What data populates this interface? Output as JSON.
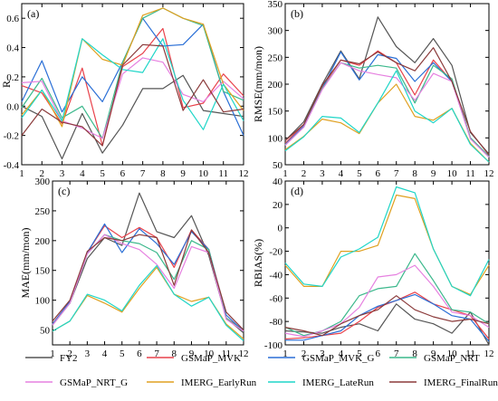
{
  "chart_data": [
    {
      "panel": "(a)",
      "type": "line",
      "ylabel": "R",
      "x": [
        1,
        2,
        3,
        4,
        5,
        6,
        7,
        8,
        9,
        10,
        11,
        12
      ],
      "ylim": [
        -0.4,
        0.7
      ],
      "yticks": [
        -0.4,
        -0.2,
        0.0,
        0.2,
        0.4,
        0.6
      ],
      "ytick_labels": [
        "-0.4",
        "-0.2",
        "0.0",
        "0.2",
        "0.4",
        "0.6"
      ],
      "series": [
        {
          "name": "FY2",
          "color": "#555555",
          "values": [
            0.0,
            -0.07,
            -0.36,
            -0.05,
            -0.32,
            -0.13,
            0.12,
            0.12,
            0.21,
            -0.03,
            -0.05,
            -0.07
          ]
        },
        {
          "name": "GSMaP_MVK",
          "color": "#e8424b",
          "values": [
            0.14,
            0.09,
            -0.12,
            0.26,
            -0.27,
            0.27,
            0.36,
            0.53,
            -0.01,
            0.02,
            0.22,
            0.07
          ]
        },
        {
          "name": "GSMaP_MVK_G",
          "color": "#2a6fd6",
          "values": [
            0.03,
            0.31,
            -0.04,
            0.2,
            0.03,
            0.3,
            0.6,
            0.41,
            0.42,
            0.56,
            0.1,
            -0.2
          ]
        },
        {
          "name": "GSMaP_NRT",
          "color": "#3cb88c",
          "values": [
            -0.01,
            0.19,
            -0.08,
            0.0,
            -0.22,
            0.3,
            0.6,
            0.67,
            0.6,
            0.55,
            0.1,
            0.04
          ]
        },
        {
          "name": "GSMaP_NRT_G",
          "color": "#e680e0",
          "values": [
            0.16,
            0.17,
            -0.1,
            -0.15,
            -0.22,
            0.22,
            0.33,
            0.3,
            0.08,
            0.03,
            0.17,
            0.05
          ]
        },
        {
          "name": "IMERG_EarlyRun",
          "color": "#e0a020",
          "values": [
            -0.06,
            0.11,
            -0.14,
            0.46,
            0.32,
            0.28,
            0.62,
            0.67,
            0.6,
            0.56,
            0.15,
            -0.03
          ]
        },
        {
          "name": "IMERG_LateRun",
          "color": "#1fd6c8",
          "values": [
            -0.08,
            0.11,
            -0.1,
            0.46,
            0.35,
            0.25,
            0.23,
            0.46,
            0.04,
            -0.16,
            0.15,
            -0.1
          ]
        },
        {
          "name": "IMERG_FinalRun",
          "color": "#8b3a3a",
          "values": [
            -0.2,
            -0.02,
            -0.11,
            -0.14,
            -0.27,
            0.28,
            0.42,
            0.41,
            -0.03,
            0.18,
            -0.04,
            -0.02
          ]
        }
      ]
    },
    {
      "panel": "(b)",
      "type": "line",
      "ylabel": "RMSE(mm/mon)",
      "x": [
        1,
        2,
        3,
        4,
        5,
        6,
        7,
        8,
        9,
        10,
        11,
        12
      ],
      "ylim": [
        50,
        350
      ],
      "yticks": [
        50,
        100,
        150,
        200,
        250,
        300,
        350
      ],
      "ytick_labels": [
        "50",
        "100",
        "150",
        "200",
        "250",
        "300",
        "350"
      ],
      "series": [
        {
          "name": "FY2",
          "color": "#555555",
          "values": [
            95,
            130,
            200,
            262,
            210,
            325,
            270,
            240,
            285,
            235,
            110,
            70
          ]
        },
        {
          "name": "GSMaP_MVK",
          "color": "#e8424b",
          "values": [
            90,
            125,
            195,
            245,
            235,
            262,
            240,
            180,
            245,
            205,
            100,
            65
          ]
        },
        {
          "name": "GSMaP_MVK_G",
          "color": "#2a6fd6",
          "values": [
            88,
            122,
            192,
            260,
            208,
            255,
            248,
            205,
            240,
            205,
            100,
            65
          ]
        },
        {
          "name": "GSMaP_NRT",
          "color": "#3cb88c",
          "values": [
            87,
            120,
            192,
            240,
            230,
            235,
            230,
            165,
            235,
            210,
            100,
            66
          ]
        },
        {
          "name": "GSMaP_NRT_G",
          "color": "#e680e0",
          "values": [
            86,
            120,
            190,
            240,
            225,
            218,
            212,
            170,
            220,
            205,
            98,
            64
          ]
        },
        {
          "name": "IMERG_EarlyRun",
          "color": "#e0a020",
          "values": [
            78,
            103,
            135,
            128,
            108,
            165,
            200,
            140,
            133,
            155,
            90,
            55
          ]
        },
        {
          "name": "IMERG_LateRun",
          "color": "#1fd6c8",
          "values": [
            76,
            102,
            140,
            137,
            110,
            165,
            225,
            150,
            128,
            155,
            88,
            55
          ]
        },
        {
          "name": "IMERG_FinalRun",
          "color": "#8b3a3a",
          "values": [
            95,
            125,
            198,
            245,
            238,
            260,
            240,
            225,
            268,
            205,
            112,
            68
          ]
        }
      ]
    },
    {
      "panel": "(c)",
      "type": "line",
      "ylabel": "MAE(mm/mon)",
      "x": [
        1,
        2,
        3,
        4,
        5,
        6,
        7,
        8,
        9,
        10,
        11,
        12
      ],
      "ylim": [
        25,
        300
      ],
      "yticks": [
        50,
        100,
        150,
        200,
        250,
        300
      ],
      "ytick_labels": [
        "50",
        "100",
        "150",
        "200",
        "250",
        "300"
      ],
      "series": [
        {
          "name": "FY2",
          "color": "#555555",
          "values": [
            60,
            95,
            170,
            205,
            192,
            280,
            215,
            205,
            242,
            175,
            70,
            45
          ]
        },
        {
          "name": "GSMaP_MVK",
          "color": "#e8424b",
          "values": [
            60,
            98,
            180,
            225,
            205,
            222,
            205,
            155,
            218,
            185,
            70,
            50
          ]
        },
        {
          "name": "GSMaP_MVK_G",
          "color": "#2a6fd6",
          "values": [
            60,
            98,
            180,
            228,
            180,
            220,
            195,
            160,
            215,
            185,
            75,
            48
          ]
        },
        {
          "name": "GSMaP_NRT",
          "color": "#3cb88c",
          "values": [
            58,
            95,
            178,
            210,
            200,
            195,
            180,
            135,
            200,
            185,
            70,
            48
          ]
        },
        {
          "name": "GSMaP_NRT_G",
          "color": "#e680e0",
          "values": [
            58,
            95,
            178,
            210,
            195,
            185,
            160,
            120,
            190,
            180,
            68,
            48
          ]
        },
        {
          "name": "IMERG_EarlyRun",
          "color": "#e0a020",
          "values": [
            48,
            65,
            108,
            95,
            80,
            120,
            155,
            110,
            98,
            105,
            60,
            35
          ]
        },
        {
          "name": "IMERG_LateRun",
          "color": "#1fd6c8",
          "values": [
            48,
            65,
            110,
            100,
            82,
            125,
            158,
            110,
            90,
            105,
            58,
            32
          ]
        },
        {
          "name": "IMERG_FinalRun",
          "color": "#8b3a3a",
          "values": [
            65,
            100,
            182,
            205,
            200,
            210,
            205,
            125,
            218,
            180,
            80,
            50
          ]
        }
      ]
    },
    {
      "panel": "(d)",
      "type": "line",
      "ylabel": "RBIAS(%)",
      "x": [
        1,
        2,
        3,
        4,
        5,
        6,
        7,
        8,
        9,
        10,
        11,
        12
      ],
      "ylim": [
        -100,
        40
      ],
      "yticks": [
        -100,
        -80,
        -60,
        -40,
        -20,
        0,
        20,
        40
      ],
      "ytick_labels": [
        "-100",
        "-80",
        "-60",
        "-40",
        "-20",
        "0",
        "20",
        "40"
      ],
      "series": [
        {
          "name": "FY2",
          "color": "#555555",
          "values": [
            -88,
            -89,
            -90,
            -85,
            -82,
            -88,
            -65,
            -78,
            -82,
            -90,
            -72,
            -100
          ]
        },
        {
          "name": "GSMaP_MVK",
          "color": "#e8424b",
          "values": [
            -95,
            -94,
            -92,
            -90,
            -80,
            -68,
            -62,
            -55,
            -65,
            -70,
            -75,
            -95
          ]
        },
        {
          "name": "GSMaP_MVK_G",
          "color": "#2a6fd6",
          "values": [
            -96,
            -96,
            -92,
            -88,
            -75,
            -67,
            -62,
            -57,
            -65,
            -75,
            -78,
            -97
          ]
        },
        {
          "name": "GSMaP_NRT",
          "color": "#3cb88c",
          "values": [
            -85,
            -92,
            -88,
            -80,
            -58,
            -52,
            -50,
            -22,
            -45,
            -70,
            -72,
            -82
          ]
        },
        {
          "name": "GSMaP_NRT_G",
          "color": "#e680e0",
          "values": [
            -90,
            -93,
            -88,
            -82,
            -68,
            -42,
            -40,
            -32,
            -50,
            -72,
            -75,
            -85
          ]
        },
        {
          "name": "IMERG_EarlyRun",
          "color": "#e0a020",
          "values": [
            -32,
            -50,
            -50,
            -20,
            -20,
            -15,
            28,
            25,
            -18,
            -50,
            -57,
            -32
          ]
        },
        {
          "name": "IMERG_LateRun",
          "color": "#1fd6c8",
          "values": [
            -30,
            -48,
            -50,
            -25,
            -18,
            -8,
            35,
            30,
            -18,
            -50,
            -58,
            -27
          ]
        },
        {
          "name": "IMERG_FinalRun",
          "color": "#8b3a3a",
          "values": [
            -85,
            -88,
            -92,
            -82,
            -75,
            -70,
            -58,
            -70,
            -76,
            -80,
            -78,
            -82
          ]
        }
      ]
    }
  ],
  "legend": [
    {
      "name": "FY2",
      "color": "#555555"
    },
    {
      "name": "GSMaP_MVK",
      "color": "#e8424b"
    },
    {
      "name": "GSMaP_MVK_G",
      "color": "#2a6fd6"
    },
    {
      "name": "GSMaP_NRT",
      "color": "#3cb88c"
    },
    {
      "name": "GSMaP_NRT_G",
      "color": "#e680e0"
    },
    {
      "name": "IMERG_EarlyRun",
      "color": "#e0a020"
    },
    {
      "name": "IMERG_LateRun",
      "color": "#1fd6c8"
    },
    {
      "name": "IMERG_FinalRun",
      "color": "#8b3a3a"
    }
  ]
}
